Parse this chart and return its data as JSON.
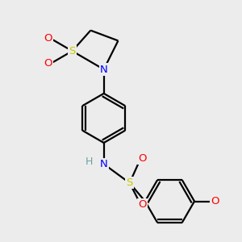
{
  "bg_color": "#ececec",
  "atom_colors": {
    "C": "#000000",
    "H": "#6fa0a0",
    "N": "#0000ff",
    "O": "#ff0000",
    "S": "#c8c800"
  },
  "bond_color": "#000000",
  "bond_width": 1.6,
  "dbo": 0.055,
  "figsize": [
    3.0,
    3.0
  ],
  "dpi": 100
}
